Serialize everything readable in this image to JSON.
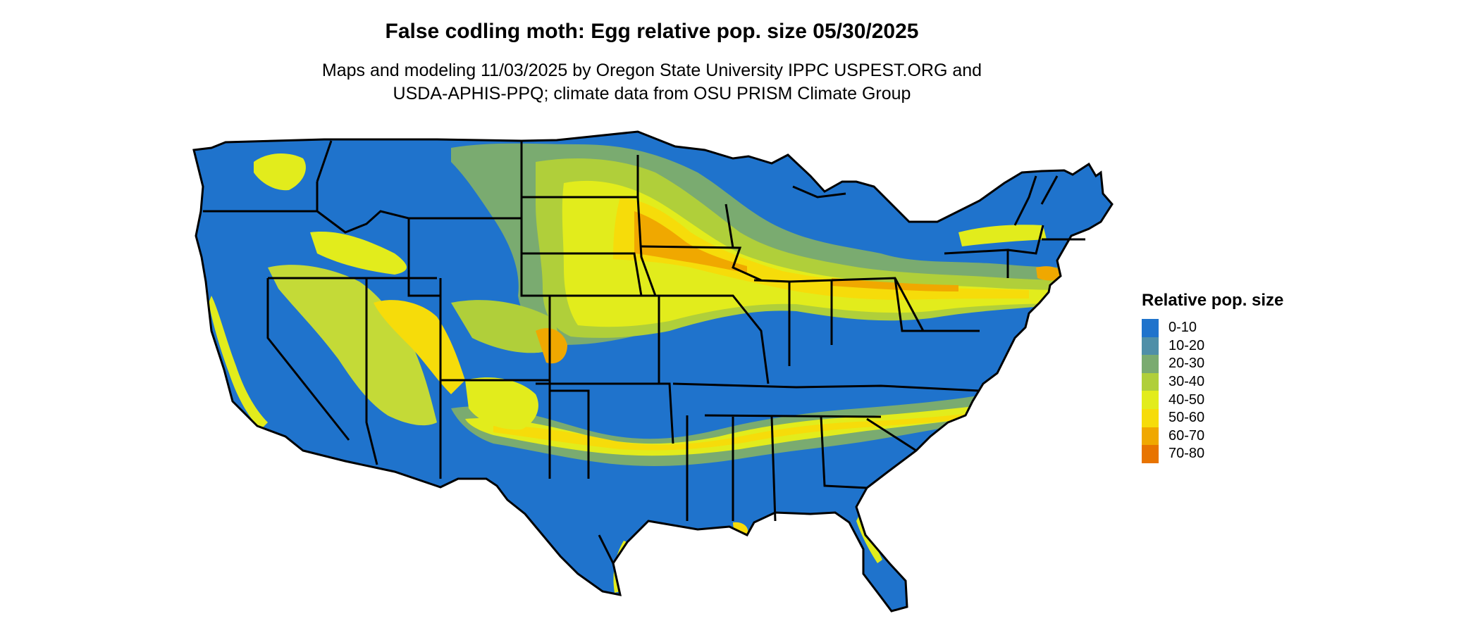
{
  "title": "False codling moth: Egg relative pop. size 05/30/2025",
  "subtitle_lines": [
    "Maps and modeling 11/03/2025 by Oregon State University IPPC USPEST.ORG and",
    "USDA-APHIS-PPQ; climate data from OSU PRISM Climate Group"
  ],
  "legend": {
    "title": "Relative pop. size",
    "items": [
      {
        "label": "0-10",
        "color": "#1f73cc"
      },
      {
        "label": "10-20",
        "color": "#4f8fa8"
      },
      {
        "label": "20-30",
        "color": "#7aab70"
      },
      {
        "label": "30-40",
        "color": "#b0cf3a"
      },
      {
        "label": "40-50",
        "color": "#e2ec1c"
      },
      {
        "label": "50-60",
        "color": "#f6dc0a"
      },
      {
        "label": "60-70",
        "color": "#f0a800"
      },
      {
        "label": "70-80",
        "color": "#e87400"
      }
    ]
  },
  "colors": {
    "state_border": "#000000",
    "land_base": "#1f73cc"
  }
}
